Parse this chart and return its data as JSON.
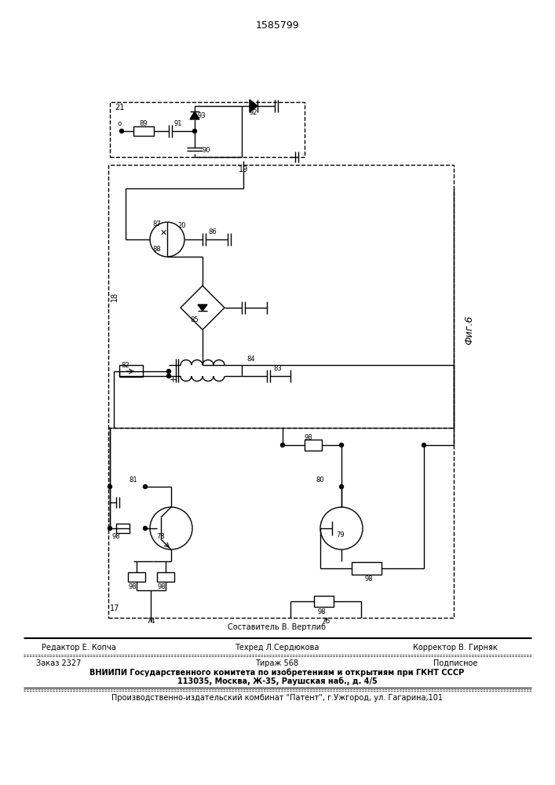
{
  "title": "1585799",
  "fig_label": "Фиг.6",
  "bg": "#ffffff",
  "lc": "#000000",
  "footer": {
    "line1": "Составитель В. Вертлиб",
    "line2_left": "Редактор Е. Копча",
    "line2_mid": "Техред Л.Сердюкова",
    "line2_right": "Корректор В. Гирняк",
    "line3_left": "Заказ 2327",
    "line3_mid": "Тираж 568",
    "line3_right": "Подписное",
    "line4": "ВНИИПИ Государственного комитета по изобретениям и открытиям при ГКНТ СССР",
    "line5": "113035, Москва, Ж-35, Раушская наб., д. 4/5",
    "line6": "Производственно-издательский комбинат \"Патент\", г.Ужгород, ул. Гагарина,101"
  }
}
